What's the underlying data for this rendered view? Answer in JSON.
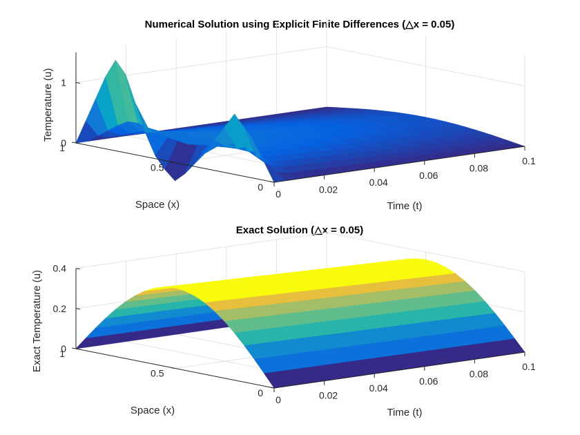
{
  "chart_data": [
    {
      "type": "surface",
      "title": "Numerical Solution using Explicit Finite Differences (△x = 0.05)",
      "xlabel": "Space (x)",
      "ylabel": "Time (t)",
      "zlabel": "Temperature (u)",
      "xlim": [
        0,
        1
      ],
      "ylim": [
        0,
        0.1
      ],
      "zlim": [
        0,
        1.5
      ],
      "x_ticks": [
        "0",
        "0.5",
        "1"
      ],
      "y_ticks": [
        "0",
        "0.02",
        "0.04",
        "0.06",
        "0.08",
        "0.1"
      ],
      "z_ticks": [
        "0",
        "1"
      ],
      "grid": true,
      "colormap": "parula",
      "t_steps": [
        0,
        0.005,
        0.01,
        0.015,
        0.02,
        0.025,
        0.03,
        0.04,
        0.05,
        0.06,
        0.07,
        0.08,
        0.09,
        0.1
      ],
      "x": [
        0,
        0.05,
        0.1,
        0.15,
        0.2,
        0.25,
        0.3,
        0.35,
        0.4,
        0.45,
        0.5,
        0.55,
        0.6,
        0.65,
        0.7,
        0.75,
        0.8,
        0.85,
        0.9,
        0.95,
        1
      ],
      "u_initial": [
        0,
        0.3,
        0.6,
        0.8,
        1.0,
        0.75,
        0.5,
        0.25,
        0.05,
        -0.15,
        -0.3,
        -0.15,
        0.05,
        0.4,
        0.85,
        1.3,
        1.5,
        1.2,
        0.8,
        0.4,
        0
      ]
    },
    {
      "type": "surface",
      "title": "Exact Solution (△x = 0.05)",
      "xlabel": "Space (x)",
      "ylabel": "Time (t)",
      "zlabel": "Exact Temperature (u)",
      "xlim": [
        0,
        1
      ],
      "ylim": [
        0,
        0.1
      ],
      "zlim": [
        0,
        0.4
      ],
      "x_ticks": [
        "0",
        "0.5",
        "1"
      ],
      "y_ticks": [
        "0",
        "0.02",
        "0.04",
        "0.06",
        "0.08",
        "0.1"
      ],
      "z_ticks": [
        "0",
        "0.2",
        "0.4"
      ],
      "grid": true,
      "colormap": "parula",
      "u_peak": 0.4
    }
  ]
}
